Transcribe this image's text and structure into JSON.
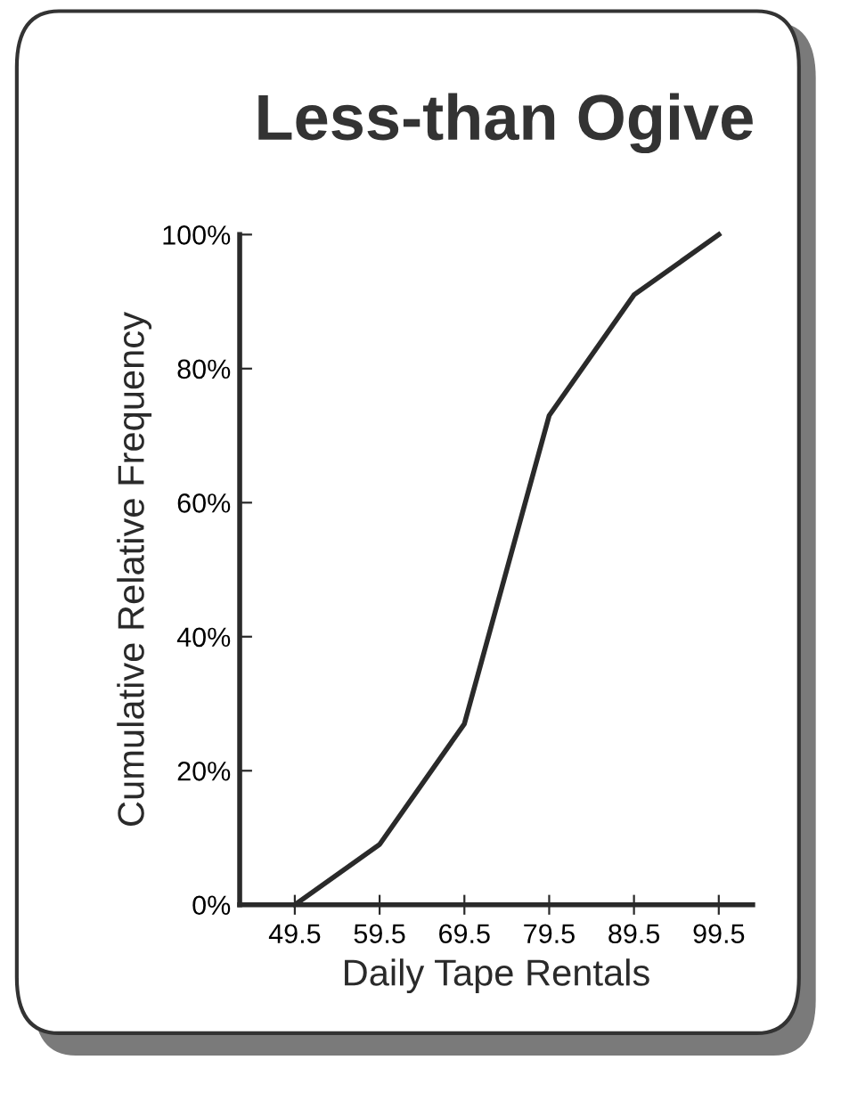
{
  "chart_data": {
    "type": "line",
    "title": "Less-than Ogive",
    "xlabel": "Daily Tape Rentals",
    "ylabel": "Cumulative Relative Frequency",
    "x": [
      49.5,
      59.5,
      69.5,
      79.5,
      89.5,
      99.5
    ],
    "series": [
      {
        "color": "#2a2a2a",
        "values": [
          0,
          9,
          27,
          73,
          91,
          100
        ]
      }
    ],
    "xlim": [
      43,
      103.5
    ],
    "xticks": [
      49.5,
      59.5,
      69.5,
      79.5,
      89.5,
      99.5
    ],
    "ylim": [
      0,
      100
    ],
    "yticks": [
      {
        "value": 0,
        "label": "0%"
      },
      {
        "value": 20,
        "label": "20%"
      },
      {
        "value": 40,
        "label": "40%"
      },
      {
        "value": 60,
        "label": "60%"
      },
      {
        "value": 80,
        "label": "80%"
      },
      {
        "value": 100,
        "label": "100%"
      }
    ],
    "grid": false,
    "legend": false,
    "marker": "none",
    "line_style": "solid"
  }
}
